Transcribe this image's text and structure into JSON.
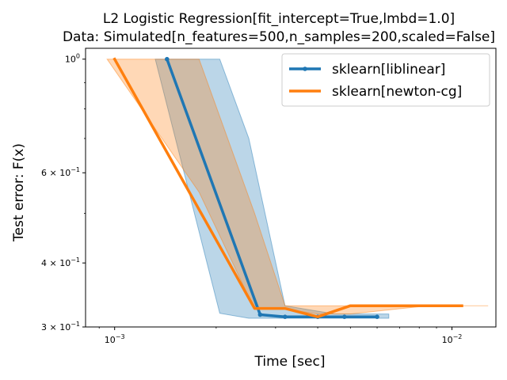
{
  "chart_data": {
    "type": "line",
    "title": "L2 Logistic Regression[fit_intercept=True,lmbd=1.0]",
    "subtitle": "Data: Simulated[n_features=500,n_samples=200,scaled=False]",
    "xlabel": "Time [sec]",
    "ylabel": "Test error: F(x)",
    "xscale": "log",
    "yscale": "log",
    "xlim": [
      0.00082,
      0.0135
    ],
    "ylim": [
      0.3,
      1.05
    ],
    "xticks": [
      {
        "value": 0.001,
        "base": "10",
        "exp": "−3"
      },
      {
        "value": 0.01,
        "base": "10",
        "exp": "−2"
      }
    ],
    "yticks": [
      {
        "value": 1.0,
        "mant": "",
        "base": "10",
        "exp": "0"
      },
      {
        "value": 0.6,
        "mant": "6 × ",
        "base": "10",
        "exp": "−1"
      },
      {
        "value": 0.4,
        "mant": "4 × ",
        "base": "10",
        "exp": "−1"
      },
      {
        "value": 0.3,
        "mant": "3 × ",
        "base": "10",
        "exp": "−1"
      }
    ],
    "grid": false,
    "legend_position": "top-right",
    "series": [
      {
        "name": "sklearn[liblinear]",
        "color": "#1f77b4",
        "marker": "dot",
        "x": [
          0.00143,
          0.0027,
          0.0032,
          0.004,
          0.0048,
          0.006
        ],
        "y": [
          1.0,
          0.317,
          0.314,
          0.314,
          0.314,
          0.314
        ],
        "band": {
          "x": [
            0.00132,
            0.00205,
            0.0025,
            0.0032,
            0.0045,
            0.0065
          ],
          "upper": [
            1.0,
            1.0,
            0.7,
            0.33,
            0.318,
            0.318
          ],
          "lower": [
            1.0,
            0.319,
            0.312,
            0.312,
            0.312,
            0.312
          ]
        }
      },
      {
        "name": "sklearn[newton-cg]",
        "color": "#ff7f0e",
        "marker": "none",
        "x": [
          0.001,
          0.0026,
          0.0032,
          0.004,
          0.005,
          0.0085,
          0.0107
        ],
        "y": [
          1.0,
          0.326,
          0.326,
          0.314,
          0.33,
          0.33,
          0.33
        ],
        "band": {
          "x": [
            0.00095,
            0.00178,
            0.0026,
            0.0032,
            0.004,
            0.005,
            0.0085,
            0.0128
          ],
          "upper": [
            1.0,
            1.0,
            0.5,
            0.33,
            0.33,
            0.33,
            0.33,
            0.33
          ],
          "lower": [
            1.0,
            0.55,
            0.325,
            0.325,
            0.318,
            0.318,
            0.33,
            0.33
          ]
        }
      }
    ]
  }
}
